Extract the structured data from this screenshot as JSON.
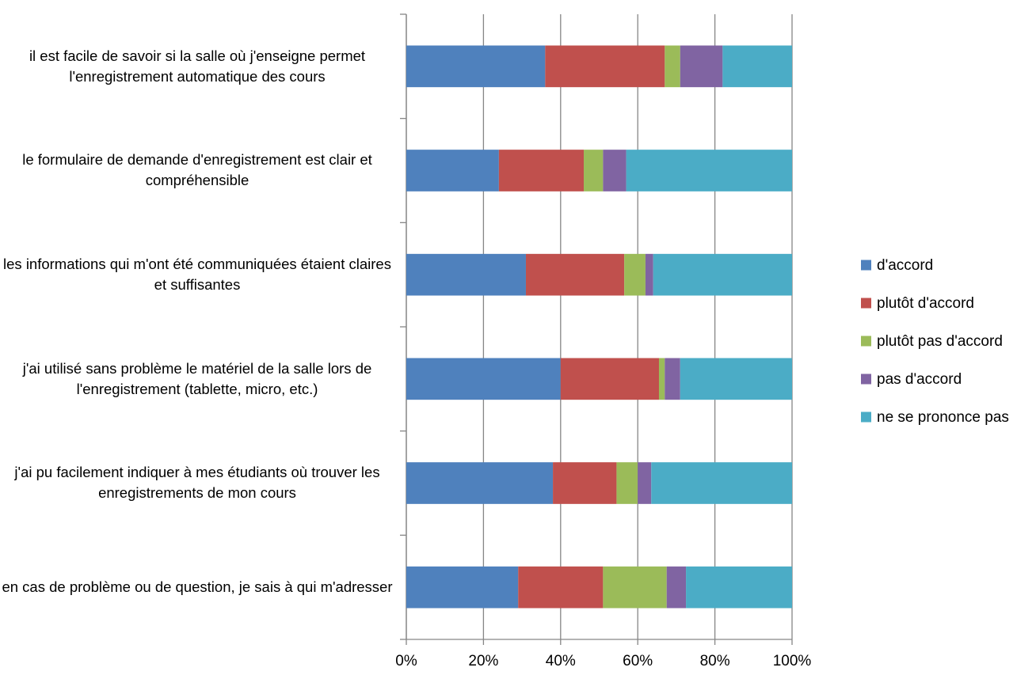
{
  "chart_data": {
    "type": "stacked_bar_horizontal",
    "categories": [
      "il est facile de savoir si la salle où j'enseigne permet l'enregistrement automatique des cours",
      "le formulaire de demande d'enregistrement est clair et compréhensible",
      "les informations qui m'ont été communiquées étaient claires et suffisantes",
      "j'ai utilisé sans problème le matériel de la salle lors de l'enregistrement (tablette, micro, etc.)",
      "j'ai pu facilement indiquer à mes étudiants où trouver les enregistrements de mon cours",
      "en cas de problème ou de question, je sais à qui m'adresser"
    ],
    "series": [
      {
        "name": "d'accord",
        "color": "#4f81bd",
        "values": [
          36,
          24,
          31,
          40,
          38,
          29
        ]
      },
      {
        "name": "plutôt d'accord",
        "color": "#c0504d",
        "values": [
          31,
          22,
          25.5,
          25.5,
          16.5,
          22
        ]
      },
      {
        "name": "plutôt pas d'accord",
        "color": "#9bbb59",
        "values": [
          4,
          5,
          5.5,
          1.5,
          5.5,
          16.5
        ]
      },
      {
        "name": "pas d'accord",
        "color": "#8064a2",
        "values": [
          11,
          6,
          2,
          4,
          3.5,
          5
        ]
      },
      {
        "name": "ne se prononce pas",
        "color": "#4bacc6",
        "values": [
          18,
          43,
          36,
          29,
          36.5,
          27.5
        ]
      }
    ],
    "xlim": [
      0,
      100
    ],
    "xticks": [
      {
        "value": 0,
        "label": "0%"
      },
      {
        "value": 20,
        "label": "20%"
      },
      {
        "value": 40,
        "label": "40%"
      },
      {
        "value": 60,
        "label": "60%"
      },
      {
        "value": 80,
        "label": "80%"
      },
      {
        "value": 100,
        "label": "100%"
      }
    ],
    "grid": true,
    "legend": "right"
  }
}
